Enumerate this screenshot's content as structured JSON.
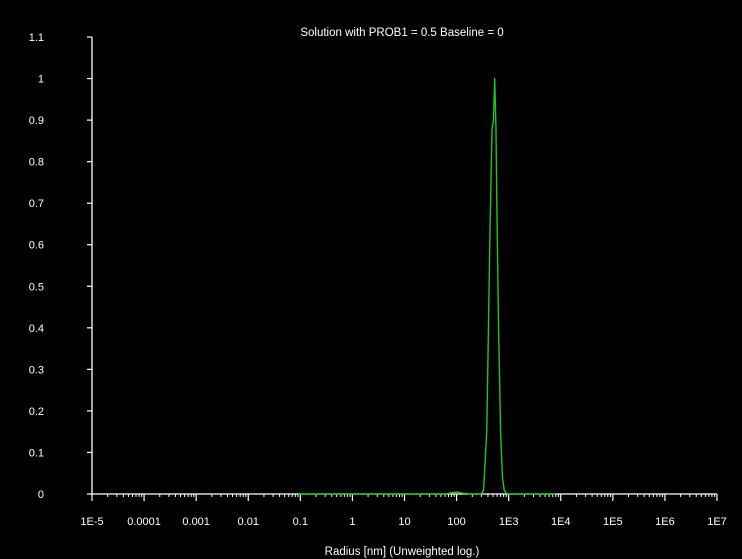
{
  "chart_data": {
    "type": "line",
    "title": "Solution with PROB1 = 0.5 Baseline = 0",
    "xlabel": "Radius [nm] (Unweighted log.)",
    "ylabel": "",
    "x_scale": "log",
    "xlim": [
      1e-05,
      10000000.0
    ],
    "ylim": [
      0,
      1.1
    ],
    "x_ticks": [
      {
        "value": 1e-05,
        "label": "1E-5"
      },
      {
        "value": 0.0001,
        "label": "0.0001"
      },
      {
        "value": 0.001,
        "label": "0.001"
      },
      {
        "value": 0.01,
        "label": "0.01"
      },
      {
        "value": 0.1,
        "label": "0.1"
      },
      {
        "value": 1,
        "label": "1"
      },
      {
        "value": 10,
        "label": "10"
      },
      {
        "value": 100,
        "label": "100"
      },
      {
        "value": 1000,
        "label": "1E3"
      },
      {
        "value": 10000,
        "label": "1E4"
      },
      {
        "value": 100000,
        "label": "1E5"
      },
      {
        "value": 1000000,
        "label": "1E6"
      },
      {
        "value": 10000000,
        "label": "1E7"
      }
    ],
    "y_ticks": [
      {
        "value": 0,
        "label": "0"
      },
      {
        "value": 0.1,
        "label": "0.1"
      },
      {
        "value": 0.2,
        "label": "0.2"
      },
      {
        "value": 0.3,
        "label": "0.3"
      },
      {
        "value": 0.4,
        "label": "0.4"
      },
      {
        "value": 0.5,
        "label": "0.5"
      },
      {
        "value": 0.6,
        "label": "0.6"
      },
      {
        "value": 0.7,
        "label": "0.7"
      },
      {
        "value": 0.8,
        "label": "0.8"
      },
      {
        "value": 0.9,
        "label": "0.9"
      },
      {
        "value": 1,
        "label": "1"
      },
      {
        "value": 1.1,
        "label": "1.1"
      }
    ],
    "grid": false,
    "colors": {
      "background": "#000000",
      "axes": "#ffffff",
      "text": "#ffffff",
      "series": "#22c322"
    },
    "series": [
      {
        "x": [
          0.09,
          1,
          10,
          60,
          100,
          130,
          200,
          300,
          330,
          380,
          440,
          480,
          510,
          540,
          570,
          600,
          640,
          700,
          760,
          820,
          900,
          1000,
          3000,
          8000
        ],
        "y": [
          0,
          0,
          0,
          0.0,
          0.005,
          0.002,
          0.0,
          0.0,
          0.01,
          0.15,
          0.65,
          0.88,
          0.9,
          1.0,
          0.88,
          0.65,
          0.4,
          0.15,
          0.04,
          0.01,
          0.002,
          0,
          0,
          0
        ]
      }
    ]
  }
}
